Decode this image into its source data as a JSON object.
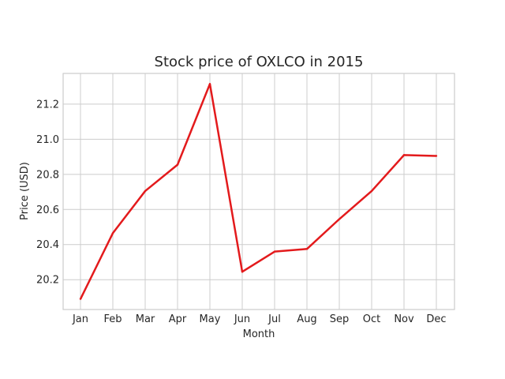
{
  "chart_data": {
    "type": "line",
    "title": "Stock price of OXLCO in 2015",
    "xlabel": "Month",
    "ylabel": "Price (USD)",
    "categories": [
      "Jan",
      "Feb",
      "Mar",
      "Apr",
      "May",
      "Jun",
      "Jul",
      "Aug",
      "Sep",
      "Oct",
      "Nov",
      "Dec"
    ],
    "series": [
      {
        "values": [
          20.09,
          20.465,
          20.705,
          20.855,
          21.315,
          20.245,
          20.36,
          20.375,
          20.545,
          20.705,
          20.91,
          20.905
        ]
      }
    ],
    "yticks": [
      "20.2",
      "20.4",
      "20.6",
      "20.8",
      "21.0",
      "21.2"
    ],
    "ylim": [
      20.03,
      21.375
    ],
    "grid": true,
    "line_color": "#e31a1c",
    "grid_color": "#cccccc"
  }
}
